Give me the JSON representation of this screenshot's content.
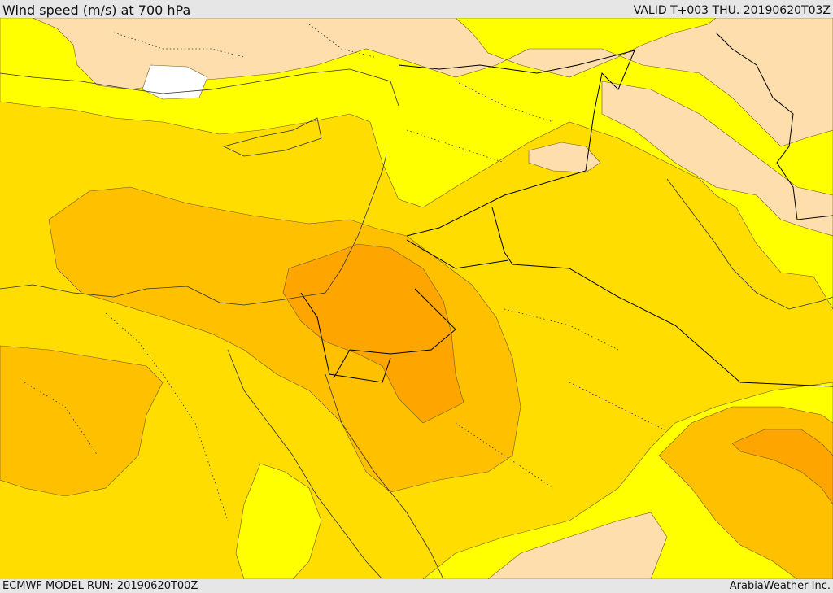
{
  "header": {
    "title": "Wind speed (m/s) at 700 hPa",
    "valid": "VALID T+003 THU. 20190620T03Z"
  },
  "footer": {
    "model_run": "ECMWF MODEL RUN: 20190620T00Z",
    "credit": "ArabiaWeather Inc."
  },
  "palette": {
    "band_0_5": "#ffdead",
    "band_5_10": "#ffff00",
    "band_10_15": "#ffdd00",
    "band_15_20": "#ffc000",
    "band_20_25": "#ffa500",
    "missing": "#ffffff",
    "border": "#000000",
    "coast": "#333333"
  }
}
